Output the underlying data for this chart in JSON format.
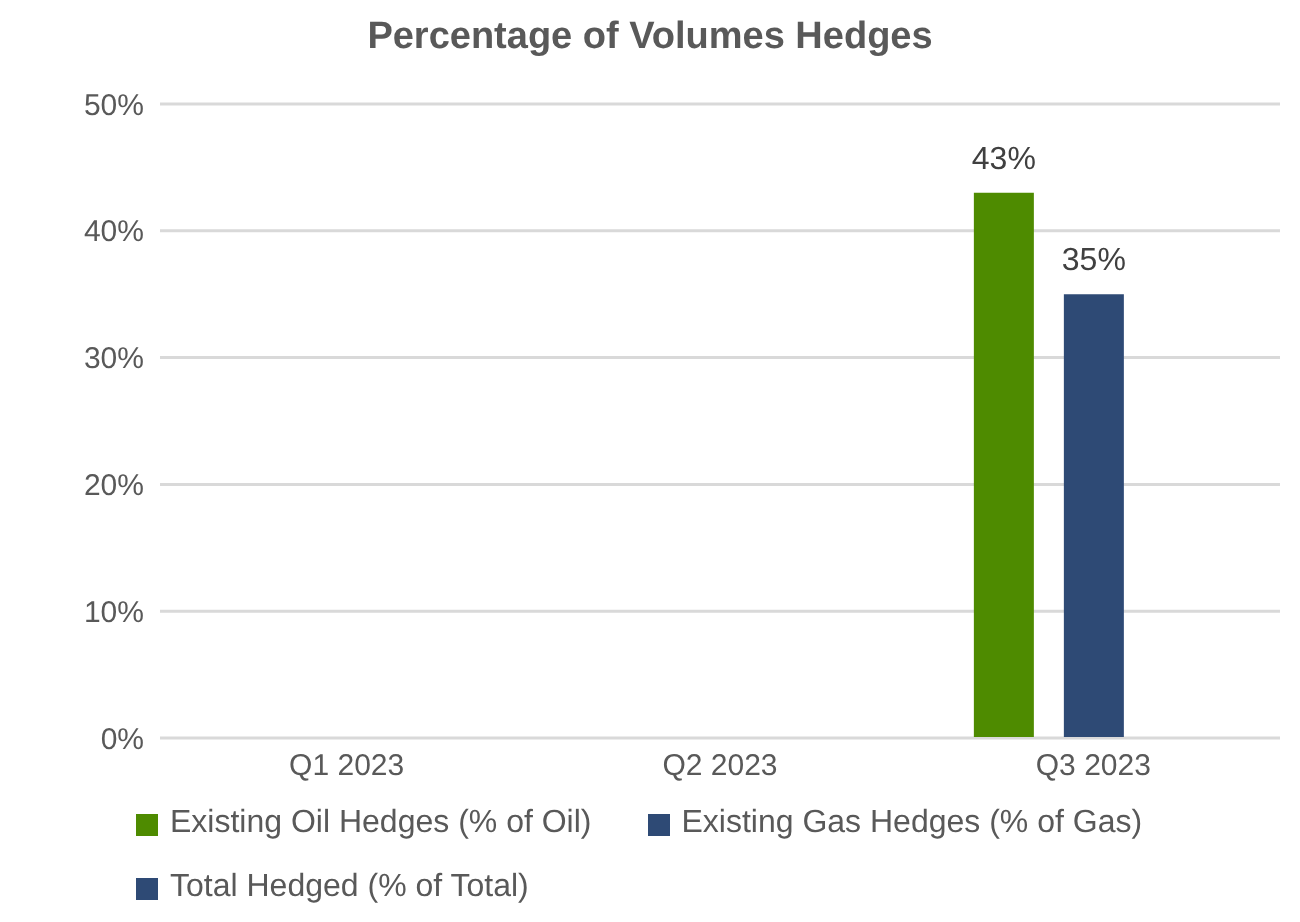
{
  "chart_data": {
    "type": "bar",
    "title": "Percentage of Volumes Hedges",
    "categories": [
      "Q1 2023",
      "Q2 2023",
      "Q3 2023"
    ],
    "series": [
      {
        "name": "Existing Oil Hedges (% of Oil)",
        "color": "#4e8b00",
        "values": [
          null,
          null,
          43
        ],
        "value_labels": [
          null,
          null,
          "43%"
        ]
      },
      {
        "name": "Existing Gas Hedges (% of Gas)",
        "color": "#2e4a75",
        "values": [
          null,
          null,
          35
        ],
        "value_labels": [
          null,
          null,
          "35%"
        ]
      },
      {
        "name": "Total Hedged (% of Total)",
        "color": "#2e4a75",
        "values": [
          null,
          null,
          null
        ],
        "value_labels": [
          null,
          null,
          null
        ]
      }
    ],
    "ylim": [
      0,
      50
    ],
    "yticks": [
      {
        "value": 0,
        "label": "0%"
      },
      {
        "value": 10,
        "label": "10%"
      },
      {
        "value": 20,
        "label": "20%"
      },
      {
        "value": 30,
        "label": "30%"
      },
      {
        "value": 40,
        "label": "40%"
      },
      {
        "value": 50,
        "label": "50%"
      }
    ],
    "grid": "y",
    "legend": "bottom"
  }
}
